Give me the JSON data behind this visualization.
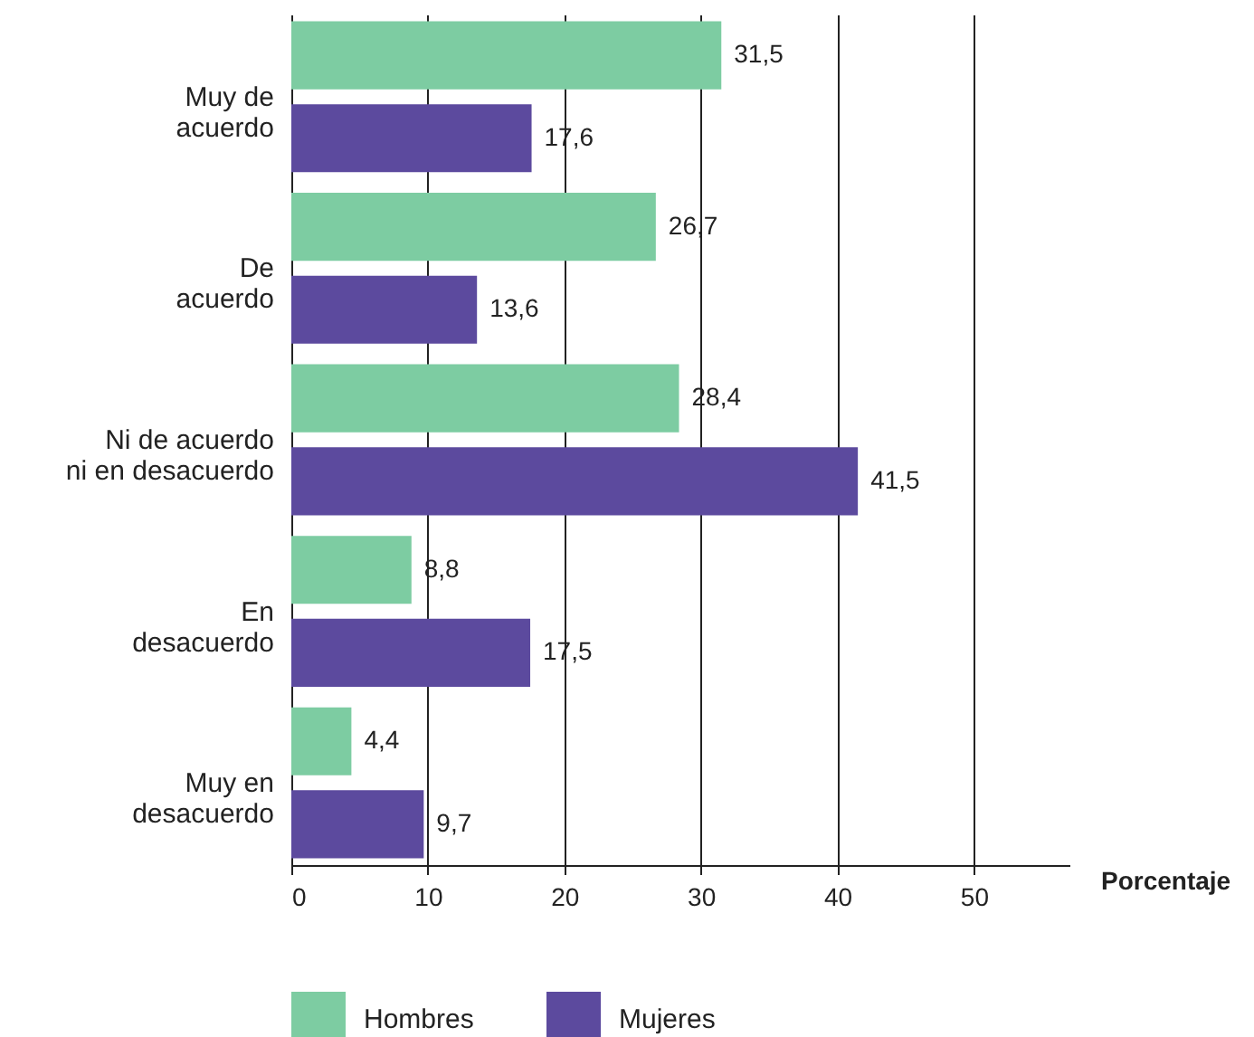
{
  "chart_data": {
    "type": "bar",
    "orientation": "horizontal",
    "xlabel": "Porcentaje",
    "categories": [
      "Muy de acuerdo",
      "De acuerdo",
      "Ni de acuerdo ni en desacuerdo",
      "En desacuerdo",
      "Muy en desacuerdo"
    ],
    "series": [
      {
        "name": "Hombres",
        "color": "#7dcca2",
        "values": [
          31.5,
          26.7,
          28.4,
          8.8,
          4.4
        ],
        "value_labels": [
          "31,5",
          "26,7",
          "28,4",
          "8,8",
          "4,4"
        ]
      },
      {
        "name": "Mujeres",
        "color": "#5c4a9e",
        "values": [
          17.6,
          13.6,
          41.5,
          17.5,
          9.7
        ],
        "value_labels": [
          "17,6",
          "13,6",
          "41,5",
          "17,5",
          "9,7"
        ]
      }
    ],
    "xlim": [
      0,
      57
    ],
    "xticks": [
      0,
      10,
      20,
      30,
      40,
      50
    ],
    "grid": "x",
    "legend": "bottom"
  }
}
